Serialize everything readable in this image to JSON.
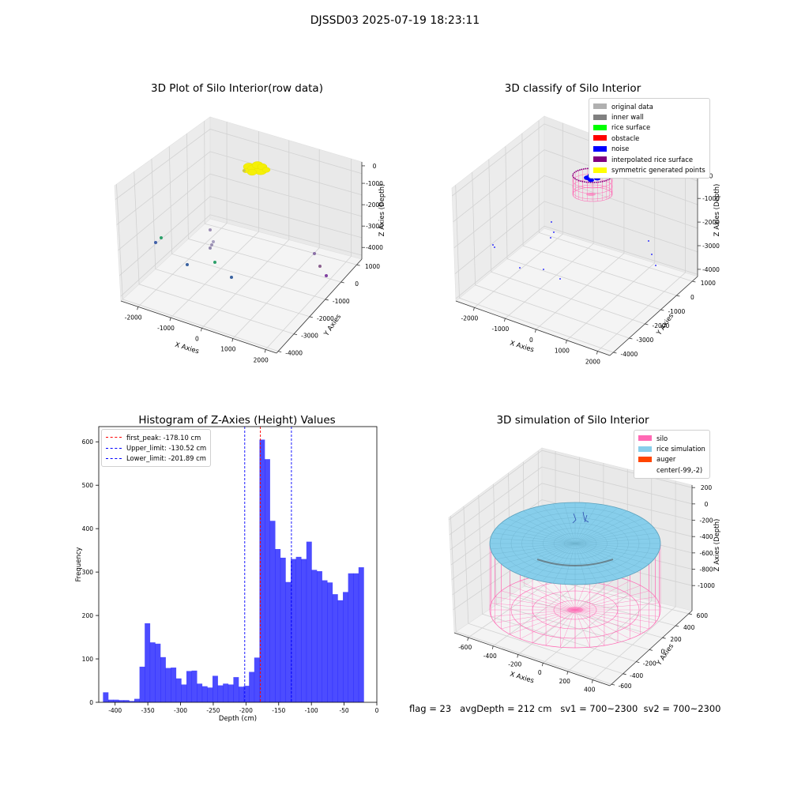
{
  "figure": {
    "suptitle": "DJSSD03 2025-07-19 18:23:11"
  },
  "chart_data": [
    {
      "type": "scatter",
      "title": "3D Plot of Silo Interior(row data)",
      "xlabel": "X Axies",
      "ylabel": "Y Axies",
      "zlabel": "Z Axies (Depth)",
      "x_ticks": [
        "-2000",
        "-1000",
        "0",
        "1000",
        "2000"
      ],
      "y_ticks": [
        "1000",
        "0",
        "-1000",
        "-2000",
        "-3000",
        "-4000"
      ],
      "z_ticks": [
        "0",
        "-1000",
        "-2000",
        "-3000",
        "-4000"
      ],
      "grid": true,
      "series": [
        {
          "color": "#f5f007",
          "points": [
            [
              -1000,
              -3300,
              -200
            ]
          ]
        }
      ]
    },
    {
      "type": "scatter",
      "title": "3D classify of Silo Interior",
      "xlabel": "X Axies",
      "ylabel": "Y Axies",
      "zlabel": "Z Axies (Depth)",
      "x_ticks": [
        "-2000",
        "-1000",
        "0",
        "1000",
        "2000"
      ],
      "y_ticks": [
        "1000",
        "0",
        "-1000",
        "-2000",
        "-3000",
        "-4000"
      ],
      "z_ticks": [
        "0",
        "-1000",
        "-2000",
        "-3000",
        "-4000"
      ],
      "grid": true,
      "legend_position": "top-right",
      "legend": [
        {
          "label": "original data",
          "color": "#b0b0b0"
        },
        {
          "label": "inner wall",
          "color": "#808080"
        },
        {
          "label": "rice surface",
          "color": "#00ff00"
        },
        {
          "label": "obstacle",
          "color": "#ff0000"
        },
        {
          "label": "noise",
          "color": "#0000ff"
        },
        {
          "label": "interpolated rice surface",
          "color": "#800080"
        },
        {
          "label": "symmetric generated points",
          "color": "#ffff00"
        }
      ]
    },
    {
      "type": "bar",
      "title": "Histogram of Z-Axies (Height) Values",
      "xlabel": "Depth (cm)",
      "ylabel": "Frequency",
      "xlim": [
        -425,
        0
      ],
      "ylim": [
        0,
        635
      ],
      "x_ticks": [
        -400,
        -350,
        -300,
        -250,
        -200,
        -150,
        -100,
        -50,
        0
      ],
      "y_ticks": [
        0,
        100,
        200,
        300,
        400,
        500,
        600
      ],
      "bar_color": "#0000ff",
      "bin_start": -418.5,
      "bin_width": 7.97,
      "values": [
        23,
        6,
        6,
        5,
        5,
        3,
        8,
        82,
        182,
        138,
        135,
        104,
        79,
        80,
        55,
        41,
        72,
        73,
        43,
        37,
        34,
        61,
        39,
        43,
        41,
        58,
        36,
        38,
        70,
        103,
        605,
        560,
        418,
        353,
        333,
        277,
        330,
        335,
        330,
        370,
        305,
        302,
        281,
        276,
        249,
        235,
        254,
        297,
        297,
        311
      ],
      "lines": [
        {
          "label": "first_peak: -178.10 cm",
          "x": -178.1,
          "color": "#ff0000"
        },
        {
          "label": "Upper_limit: -130.52 cm",
          "x": -130.52,
          "color": "#0000ff"
        },
        {
          "label": "Lower_limit: -201.89 cm",
          "x": -201.89,
          "color": "#0000ff"
        }
      ],
      "legend_position": "top-left"
    },
    {
      "type": "scatter",
      "title": "3D simulation of Silo Interior",
      "xlabel": "X Axies",
      "ylabel": "Y Axies",
      "zlabel": "Z Axies (Depth)",
      "x_ticks": [
        "-600",
        "-400",
        "-200",
        "0",
        "200",
        "400"
      ],
      "y_ticks": [
        "600",
        "400",
        "200",
        "0",
        "-200",
        "-400",
        "-600"
      ],
      "z_ticks": [
        "200",
        "0",
        "-200",
        "-400",
        "-600",
        "-800",
        "-1000"
      ],
      "grid": true,
      "legend_position": "top-right",
      "legend": [
        {
          "label": "silo",
          "color": "#ff69b4"
        },
        {
          "label": "rice simulation",
          "color": "#87ceeb"
        },
        {
          "label": "auger",
          "color": "#ff4500"
        },
        {
          "label": "center(-99,-2)",
          "color": "#ffffff"
        }
      ]
    }
  ],
  "stats": {
    "text": "flag = 23   avgDepth = 212 cm   sv1 = 700~2300  sv2 = 700~2300"
  }
}
